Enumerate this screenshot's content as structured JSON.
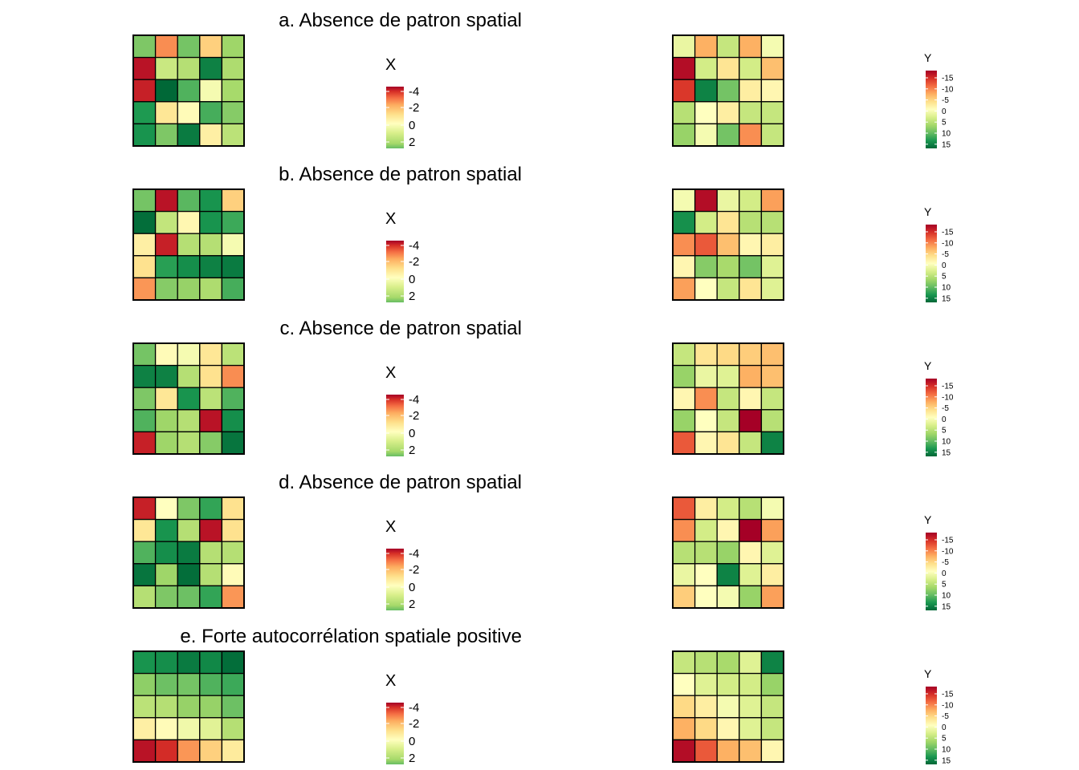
{
  "chart_data": {
    "type": "heatmap",
    "colors": {
      "scale": [
        "#a50026",
        "#d73027",
        "#f46d43",
        "#fdae61",
        "#fee08b",
        "#ffffbf",
        "#d9ef8b",
        "#a6d96a",
        "#66bd63",
        "#1a9850",
        "#006837"
      ]
    },
    "legend_x": {
      "title": "X",
      "ticks": [
        "-4",
        "-2",
        "0",
        "2"
      ],
      "tick_values": [
        -4,
        -2,
        0,
        2
      ],
      "range": [
        -4.6,
        3.0
      ]
    },
    "legend_y": {
      "title": "Y",
      "ticks": [
        "-15",
        "-10",
        "-5",
        "0",
        "5",
        "10",
        "15"
      ],
      "tick_values": [
        -15,
        -10,
        -5,
        0,
        5,
        10,
        15
      ],
      "range": [
        -18,
        18
      ]
    },
    "panels": [
      {
        "title": "a.  Absence de patron spatial",
        "x": [
          [
            1.2,
            -2.7,
            1.3,
            -1.8,
            0.8
          ],
          [
            -4.3,
            0.2,
            0.5,
            2.6,
            0.6
          ],
          [
            -4.1,
            3.0,
            1.7,
            -0.6,
            0.7
          ],
          [
            2.2,
            -1.4,
            -0.9,
            1.8,
            1.1
          ],
          [
            2.3,
            1.2,
            2.7,
            -1.2,
            0.4
          ]
        ],
        "y": [
          [
            2,
            -7,
            5,
            -7,
            1
          ],
          [
            -17,
            4,
            -3,
            4,
            -6
          ],
          [
            -14,
            16,
            10,
            -2,
            -1
          ],
          [
            6,
            0,
            -2,
            5,
            5
          ],
          [
            8,
            1,
            10,
            -9,
            5
          ]
        ]
      },
      {
        "title": "b.  Absence de patron spatial",
        "x": [
          [
            1.3,
            -4.3,
            1.6,
            2.3,
            -1.8
          ],
          [
            2.9,
            0.3,
            -1.0,
            2.3,
            1.9
          ],
          [
            -1.2,
            -4.1,
            0.5,
            0.5,
            -0.6
          ],
          [
            -1.5,
            2.1,
            2.4,
            2.6,
            2.7
          ],
          [
            -2.6,
            1.1,
            0.9,
            0.6,
            1.8
          ]
        ],
        "y": [
          [
            1,
            -17,
            2,
            4,
            -8
          ],
          [
            15,
            4,
            -3,
            6,
            6
          ],
          [
            -9,
            -12,
            -6,
            -1,
            -2
          ],
          [
            -1,
            9,
            7,
            10,
            3
          ],
          [
            -8,
            0,
            5,
            -3,
            3
          ]
        ]
      },
      {
        "title": "c.  Absence de patron spatial",
        "x": [
          [
            1.3,
            -0.9,
            -0.6,
            -1.4,
            0.4
          ],
          [
            2.6,
            2.6,
            0.5,
            -1.5,
            -2.7
          ],
          [
            1.2,
            -1.4,
            2.3,
            0.4,
            1.7
          ],
          [
            1.7,
            0.8,
            0.5,
            -4.3,
            2.4
          ],
          [
            -4.1,
            0.8,
            0.5,
            1.1,
            2.8
          ]
        ],
        "y": [
          [
            5,
            -3,
            -4,
            -5,
            -6
          ],
          [
            8,
            2,
            3,
            -7,
            -6
          ],
          [
            -1,
            -9,
            5,
            -1,
            5
          ],
          [
            8,
            0,
            5,
            -18,
            6
          ],
          [
            -12,
            -1,
            -3,
            5,
            16
          ]
        ]
      },
      {
        "title": "d.  Absence de patron spatial",
        "x": [
          [
            -4.1,
            -0.8,
            1.2,
            2.0,
            -1.5
          ],
          [
            -1.4,
            2.3,
            0.5,
            -4.3,
            -1.5
          ],
          [
            1.7,
            2.4,
            2.7,
            0.5,
            0.5
          ],
          [
            2.8,
            0.8,
            2.9,
            0.5,
            -0.9
          ],
          [
            0.5,
            1.2,
            1.4,
            2.0,
            -2.6
          ]
        ],
        "y": [
          [
            -12,
            -2,
            4,
            6,
            1
          ],
          [
            -9,
            4,
            -1,
            -18,
            -8
          ],
          [
            6,
            6,
            8,
            -1,
            3
          ],
          [
            2,
            0,
            16,
            3,
            -2
          ],
          [
            -5,
            0,
            1,
            8,
            -8
          ]
        ]
      },
      {
        "title": "e. Forte autocorrélation spatiale positive",
        "x": [
          [
            2.3,
            2.4,
            2.7,
            2.5,
            2.9
          ],
          [
            1.0,
            1.4,
            1.3,
            1.7,
            1.9
          ],
          [
            0.4,
            0.5,
            0.9,
            0.9,
            1.4
          ],
          [
            -1.2,
            -0.9,
            -0.5,
            -0.2,
            0.5
          ],
          [
            -4.3,
            -3.9,
            -2.6,
            -1.8,
            -1.3
          ]
        ],
        "y": [
          [
            5,
            6,
            7,
            3,
            16
          ],
          [
            0,
            3,
            4,
            4,
            8
          ],
          [
            -4,
            -2,
            1,
            3,
            5
          ],
          [
            -7,
            -4,
            -1,
            3,
            5
          ],
          [
            -17,
            -12,
            -7,
            -6,
            -1
          ]
        ]
      }
    ]
  }
}
